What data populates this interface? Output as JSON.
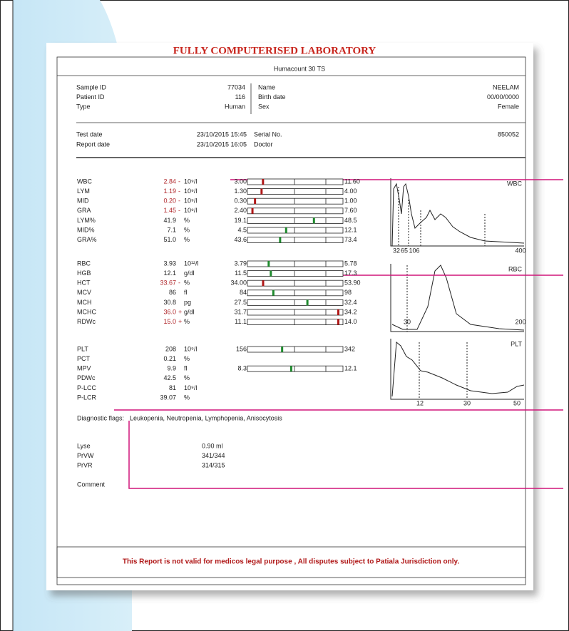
{
  "header": {
    "title": "FULLY COMPUTERISED LABORATORY",
    "device": "Humacount 30 TS"
  },
  "patient": {
    "left": [
      {
        "label": "Sample ID",
        "value": "77034"
      },
      {
        "label": "Patient ID",
        "value": "116"
      },
      {
        "label": "Type",
        "value": "Human"
      }
    ],
    "right": [
      {
        "label": "Name",
        "value": "NEELAM"
      },
      {
        "label": "Birth date",
        "value": "00/00/0000"
      },
      {
        "label": "Sex",
        "value": "Female"
      }
    ]
  },
  "dates": {
    "left": [
      {
        "label": "Test date",
        "value": "23/10/2015 15:45"
      },
      {
        "label": "Report date",
        "value": "23/10/2015 16:05"
      }
    ],
    "right": [
      {
        "label": "Serial No.",
        "value": "850052"
      },
      {
        "label": "Doctor"
      }
    ]
  },
  "results": [
    [
      {
        "name": "WBC",
        "value": "2.84",
        "flag": "-",
        "unit": "10⁹/l",
        "low": "3.00",
        "high": "11.60"
      },
      {
        "name": "LYM",
        "value": "1.19",
        "flag": "-",
        "unit": "10⁹/l",
        "low": "1.30",
        "high": "4.00"
      },
      {
        "name": "MID",
        "value": "0.20",
        "flag": "-",
        "unit": "10⁹/l",
        "low": "0.30",
        "high": "1.00"
      },
      {
        "name": "GRA",
        "value": "1.45",
        "flag": "-",
        "unit": "10⁹/l",
        "low": "2.40",
        "high": "7.60"
      },
      {
        "name": "LYM%",
        "value": "41.9",
        "unit": "%",
        "low": "19.1",
        "high": "48.5"
      },
      {
        "name": "MID%",
        "value": "7.1",
        "unit": "%",
        "low": "4.5",
        "high": "12.1"
      },
      {
        "name": "GRA%",
        "value": "51.0",
        "unit": "%",
        "low": "43.6",
        "high": "73.4"
      }
    ],
    [
      {
        "name": "RBC",
        "value": "3.93",
        "unit": "10¹²/l",
        "low": "3.79",
        "high": "5.78"
      },
      {
        "name": "HGB",
        "value": "12.1",
        "unit": "g/dl",
        "low": "11.5",
        "high": "17.3"
      },
      {
        "name": "HCT",
        "value": "33.67",
        "flag": "-",
        "unit": "%",
        "low": "34.00",
        "high": "53.90"
      },
      {
        "name": "MCV",
        "value": "86",
        "unit": "fl",
        "low": "84",
        "high": "98"
      },
      {
        "name": "MCH",
        "value": "30.8",
        "unit": "pg",
        "low": "27.5",
        "high": "32.4"
      },
      {
        "name": "MCHC",
        "value": "36.0",
        "flag": "+",
        "unit": "g/dl",
        "low": "31.7",
        "high": "34.2"
      },
      {
        "name": "RDWc",
        "value": "15.0",
        "flag": "+",
        "unit": "%",
        "low": "11.1",
        "high": "14.0"
      }
    ],
    [
      {
        "name": "PLT",
        "value": "208",
        "unit": "10⁹/l",
        "low": "156",
        "high": "342"
      },
      {
        "name": "PCT",
        "value": "0.21",
        "unit": "%"
      },
      {
        "name": "MPV",
        "value": "9.9",
        "unit": "fl",
        "low": "8.3",
        "high": "12.1"
      },
      {
        "name": "PDWc",
        "value": "42.5",
        "unit": "%"
      },
      {
        "name": "P-LCC",
        "value": "81",
        "unit": "10⁹/l"
      },
      {
        "name": "P-LCR",
        "value": "39.07",
        "unit": "%"
      }
    ]
  ],
  "graphs": [
    {
      "name": "WBC",
      "axis_labels": [
        "32",
        "65",
        "106",
        "400"
      ]
    },
    {
      "name": "RBC",
      "axis_labels": [
        "30",
        "200"
      ]
    },
    {
      "name": "PLT",
      "axis_labels": [
        "12",
        "30",
        "50"
      ]
    }
  ],
  "diagnostic": {
    "label": "Diagnostic flags:",
    "flags": "Leukopenia,  Neutropenia,  Lymphopenia,  Anisocytosis"
  },
  "extras": [
    {
      "label": "Lyse",
      "value": "0.90 ml"
    },
    {
      "label": "PrVW",
      "value": "341/344"
    },
    {
      "label": "PrVR",
      "value": "314/315"
    }
  ],
  "comment": "Comment",
  "footer": "This Report is not valid for medicos legal purpose , All disputes subject to Patiala Jurisdiction only."
}
